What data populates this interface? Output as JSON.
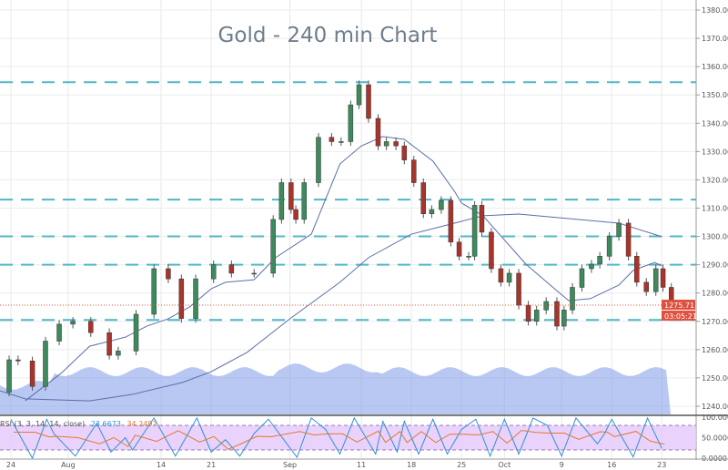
{
  "chart_data": {
    "type": "candlestick",
    "title": "Gold - 240 min Chart",
    "price_axis": {
      "range": [
        1235,
        1385
      ],
      "ticks": [
        "1240.00",
        "1250.00",
        "1260.00",
        "1270.00",
        "1280.00",
        "1290.00",
        "1300.00",
        "1310.00",
        "1320.00",
        "1330.00",
        "1340.00",
        "1350.00",
        "1360.00",
        "1370.00",
        "1380.00"
      ]
    },
    "time_axis": {
      "ticks": [
        "24",
        "Aug",
        "14",
        "21",
        "Sep",
        "11",
        "18",
        "25",
        "Oct",
        "9",
        "16",
        "23"
      ],
      "tick_dates": [
        "Jul 24",
        "Aug 1",
        "Aug 14",
        "Aug 21",
        "Sep 1",
        "Sep 11",
        "Sep 18",
        "Sep 25",
        "Oct 1",
        "Oct 9",
        "Oct 16",
        "Oct 23"
      ]
    },
    "grid": true,
    "close_path": [
      [
        "Jul 22 12:00",
        1245
      ],
      [
        "Jul 23 18:00",
        1256.4
      ],
      [
        "Jul 25 00:00",
        1256
      ],
      [
        "Jul 27 00:00",
        1247
      ],
      [
        "Jul 28 20:00",
        1263
      ],
      [
        "Jul 30 18:00",
        1269
      ],
      [
        "Aug 1 16:00",
        1270
      ],
      [
        "Aug 4 04:00",
        1266
      ],
      [
        "Aug 6 18:00",
        1258
      ],
      [
        "Aug 8 00:00",
        1259.5
      ],
      [
        "Aug 10 12:00",
        1272.5
      ],
      [
        "Aug 13 00:00",
        1288.6
      ],
      [
        "Aug 15 00:00",
        1285
      ],
      [
        "Aug 16 20:00",
        1271
      ],
      [
        "Aug 18 20:00",
        1285
      ],
      [
        "Aug 21 08:00",
        1290
      ],
      [
        "Aug 23 20:00",
        1287
      ],
      [
        "Aug 27 00:00",
        1287
      ],
      [
        "Aug 29 16:00",
        1306
      ],
      [
        "Aug 30 20:00",
        1319
      ],
      [
        "Sep 1 04:00",
        1309.5
      ],
      [
        "Sep 1 20:00",
        1306
      ],
      [
        "Sep 3 00:00",
        1319
      ],
      [
        "Sep 5 00:00",
        1335
      ],
      [
        "Sep 6 20:00",
        1333.5
      ],
      [
        "Sep 8 04:00",
        1333.5
      ],
      [
        "Sep 9 12:00",
        1346.5
      ],
      [
        "Sep 10 16:00",
        1353.6
      ],
      [
        "Sep 12 00:00",
        1341.7
      ],
      [
        "Sep 13 08:00",
        1332
      ],
      [
        "Sep 14 12:00",
        1333.5
      ],
      [
        "Sep 15 20:00",
        1332
      ],
      [
        "Sep 17 00:00",
        1327
      ],
      [
        "Sep 18 08:00",
        1319
      ],
      [
        "Sep 19 16:00",
        1308
      ],
      [
        "Sep 20 20:00",
        1309.5
      ],
      [
        "Sep 22 04:00",
        1312.7
      ],
      [
        "Sep 23 12:00",
        1298
      ],
      [
        "Sep 24 16:00",
        1293
      ],
      [
        "Sep 26 00:00",
        1293
      ],
      [
        "Sep 26 20:00",
        1311
      ],
      [
        "Sep 27 20:00",
        1301.5
      ],
      [
        "Sep 29 04:00",
        1288.6
      ],
      [
        "Sep 30 12:00",
        1283.8
      ],
      [
        "Oct 1 16:00",
        1287
      ],
      [
        "Oct 3 00:00",
        1275.7
      ],
      [
        "Oct 4 08:00",
        1270
      ],
      [
        "Oct 5 12:00",
        1274
      ],
      [
        "Oct 6 20:00",
        1277
      ],
      [
        "Oct 8 08:00",
        1268.3
      ],
      [
        "Oct 9 08:00",
        1274
      ],
      [
        "Oct 10 12:00",
        1282
      ],
      [
        "Oct 11 20:00",
        1288.6
      ],
      [
        "Oct 13 04:00",
        1290.2
      ],
      [
        "Oct 14 08:00",
        1293
      ],
      [
        "Oct 15 16:00",
        1300
      ],
      [
        "Oct 17 00:00",
        1304.7
      ],
      [
        "Oct 18 08:00",
        1293
      ],
      [
        "Oct 19 12:00",
        1283.8
      ],
      [
        "Oct 20 20:00",
        1280.5
      ],
      [
        "Oct 22 04:00",
        1288.6
      ],
      [
        "Oct 23 04:00",
        1282
      ],
      [
        "Oct 24 08:00",
        1275.71
      ]
    ],
    "moving_averages": [
      {
        "points": [
          [
            "Jul 26",
            1241.9
          ],
          [
            "Jul 31",
            1251.6
          ],
          [
            "Aug 4",
            1261.2
          ],
          [
            "Aug 9",
            1264.4
          ],
          [
            "Aug 12",
            1268.3
          ],
          [
            "Aug 15",
            1270.9
          ],
          [
            "Aug 18",
            1275.1
          ],
          [
            "Aug 21",
            1281.5
          ],
          [
            "Aug 23",
            1283.8
          ],
          [
            "Aug 27",
            1284.7
          ],
          [
            "Aug 30",
            1292.5
          ],
          [
            "Sep 4",
            1300.8
          ],
          [
            "Sep 8",
            1325.6
          ],
          [
            "Sep 11",
            1332
          ],
          [
            "Sep 14",
            1335.3
          ],
          [
            "Sep 17",
            1334.3
          ],
          [
            "Sep 21",
            1326.6
          ],
          [
            "Sep 24",
            1316
          ],
          [
            "Sep 25",
            1311.8
          ],
          [
            "Sep 28",
            1307.3
          ],
          [
            "Oct 4",
            1290.2
          ],
          [
            "Oct 8",
            1281.5
          ],
          [
            "Oct 10",
            1277.3
          ],
          [
            "Oct 13",
            1278
          ],
          [
            "Oct 17",
            1282.8
          ],
          [
            "Oct 19",
            1288
          ],
          [
            "Oct 22",
            1290.8
          ],
          [
            "Oct 23",
            1289.6
          ]
        ]
      },
      {
        "points": [
          [
            "Jul 22",
            1245.8
          ],
          [
            "Jul 26",
            1242.6
          ],
          [
            "Aug 4",
            1241.9
          ],
          [
            "Aug 10",
            1244.2
          ],
          [
            "Aug 17",
            1248.4
          ],
          [
            "Aug 21",
            1252.2
          ],
          [
            "Aug 26",
            1259
          ],
          [
            "Sep 1",
            1270.9
          ],
          [
            "Sep 8",
            1283.8
          ],
          [
            "Sep 12",
            1292.5
          ],
          [
            "Sep 18",
            1300.8
          ],
          [
            "Sep 24",
            1304.7
          ],
          [
            "Sep 28",
            1307.3
          ],
          [
            "Oct 3",
            1307.9
          ],
          [
            "Oct 10",
            1306.3
          ],
          [
            "Oct 17",
            1304.7
          ],
          [
            "Oct 23",
            1299.9
          ]
        ]
      }
    ],
    "horizontal_levels": [
      1354.5,
      1313,
      1300,
      1290,
      1270.5
    ],
    "last_price": "1275.71",
    "countdown": "03:05:21",
    "stoch": {
      "label": "RSI (3, 3, 14, 14, close)",
      "k_value": "23.6673",
      "d_value": "34.2497",
      "ticks": [
        "100.0000",
        "50.0000",
        "0.0000"
      ],
      "bands": [
        20,
        80
      ],
      "k_points": [
        [
          "Jul 24",
          95
        ],
        [
          "Jul 27",
          0
        ],
        [
          "Jul 29",
          95
        ],
        [
          "Jul 30",
          60
        ],
        [
          "Aug 2",
          5
        ],
        [
          "Aug 5",
          85
        ],
        [
          "Aug 7",
          15
        ],
        [
          "Aug 9",
          50
        ],
        [
          "Aug 10",
          20
        ],
        [
          "Aug 13",
          98
        ],
        [
          "Aug 16",
          5
        ],
        [
          "Aug 19",
          98
        ],
        [
          "Aug 21",
          15
        ],
        [
          "Aug 23",
          45
        ],
        [
          "Aug 25",
          5
        ],
        [
          "Aug 27",
          60
        ],
        [
          "Aug 29",
          95
        ],
        [
          "Sep 2",
          2
        ],
        [
          "Sep 4",
          98
        ],
        [
          "Sep 6",
          70
        ],
        [
          "Sep 8",
          10
        ],
        [
          "Sep 10",
          98
        ],
        [
          "Sep 13",
          10
        ],
        [
          "Sep 14",
          90
        ],
        [
          "Sep 16",
          15
        ],
        [
          "Sep 17",
          90
        ],
        [
          "Sep 19",
          10
        ],
        [
          "Sep 21",
          95
        ],
        [
          "Sep 23",
          10
        ],
        [
          "Sep 25",
          70
        ],
        [
          "Sep 27",
          95
        ],
        [
          "Sep 29",
          5
        ],
        [
          "Oct 1",
          95
        ],
        [
          "Oct 3",
          10
        ],
        [
          "Oct 5",
          98
        ],
        [
          "Oct 7",
          80
        ],
        [
          "Oct 9",
          5
        ],
        [
          "Oct 11",
          98
        ],
        [
          "Oct 14",
          35
        ],
        [
          "Oct 15",
          60
        ],
        [
          "Oct 16",
          95
        ],
        [
          "Oct 19",
          3
        ],
        [
          "Oct 21",
          98
        ],
        [
          "Oct 23",
          23.67
        ]
      ]
    },
    "colors": {
      "up": "#3d8a5c",
      "down": "#a8342b",
      "level": "#4fb8c9",
      "ma": "#5a6fa8",
      "last": "#e0503f",
      "k": "#2f8fd8",
      "d": "#e3782f",
      "stoch_fill": "#e3c8fb",
      "volume": "#7d9be8"
    }
  }
}
